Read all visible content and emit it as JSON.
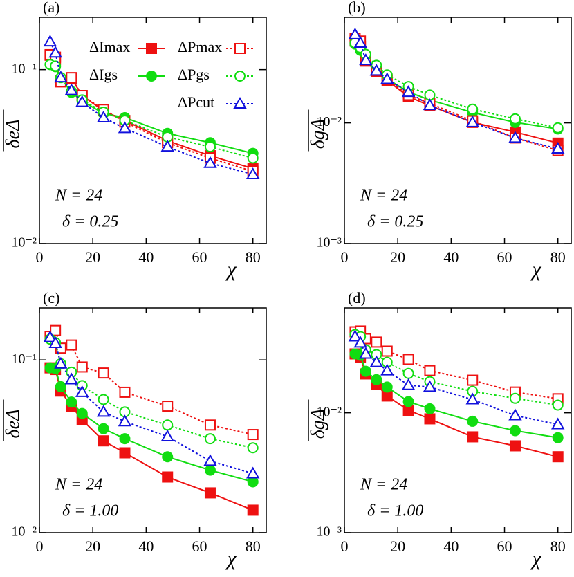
{
  "chart_data": [
    {
      "type": "line",
      "label": "(a)",
      "ylabel": "δeΔ",
      "xlabel": "χ",
      "annotations": [
        "N = 24",
        "δ = 0.25"
      ],
      "legend": true,
      "log_y": true,
      "x": [
        4,
        6,
        8,
        12,
        16,
        24,
        32,
        48,
        64,
        80
      ],
      "xlim": [
        0,
        85
      ],
      "xticks": [
        0,
        20,
        40,
        60,
        80
      ],
      "ylim": [
        0.01,
        0.2
      ],
      "yticks": [
        {
          "value": 0.1,
          "label": "10⁻¹"
        },
        {
          "value": 0.01,
          "label": "10⁻²"
        }
      ],
      "series": [
        {
          "name": "ΔImax",
          "color": "#ee1111",
          "marker": "square",
          "filled": true,
          "dashed": false,
          "values": [
            0.121,
            0.118,
            0.086,
            0.089,
            0.071,
            0.058,
            0.051,
            0.039,
            0.032,
            0.027
          ]
        },
        {
          "name": "ΔIgs",
          "color": "#11dd11",
          "marker": "circle",
          "filled": true,
          "dashed": false,
          "values": [
            0.107,
            0.104,
            0.089,
            0.074,
            0.066,
            0.056,
            0.053,
            0.043,
            0.038,
            0.033
          ]
        },
        {
          "name": "ΔPmax",
          "color": "#ee1111",
          "marker": "square",
          "filled": false,
          "dashed": true,
          "values": [
            0.122,
            0.114,
            0.085,
            0.09,
            0.071,
            0.059,
            0.05,
            0.038,
            0.031,
            0.026
          ]
        },
        {
          "name": "ΔPgs",
          "color": "#11dd11",
          "marker": "circle",
          "filled": false,
          "dashed": true,
          "values": [
            0.107,
            0.105,
            0.09,
            0.075,
            0.067,
            0.057,
            0.051,
            0.041,
            0.036,
            0.031
          ]
        },
        {
          "name": "ΔPcut",
          "color": "#1111dd",
          "marker": "triangle",
          "filled": false,
          "dashed": true,
          "values": [
            0.145,
            0.125,
            0.09,
            0.076,
            0.065,
            0.053,
            0.046,
            0.036,
            0.029,
            0.025
          ]
        }
      ]
    },
    {
      "type": "line",
      "label": "(b)",
      "ylabel": "δgΔ",
      "xlabel": "χ",
      "annotations": [
        "N = 24",
        "δ = 0.25"
      ],
      "legend": false,
      "log_y": true,
      "x": [
        4,
        6,
        8,
        12,
        16,
        24,
        32,
        48,
        64,
        80
      ],
      "xlim": [
        0,
        85
      ],
      "xticks": [
        0,
        20,
        40,
        60,
        80
      ],
      "ylim": [
        0.001,
        0.075
      ],
      "yticks": [
        {
          "value": 0.01,
          "label": "10⁻²"
        },
        {
          "value": 0.001,
          "label": "10⁻³"
        }
      ],
      "series": [
        {
          "name": "ΔImax",
          "color": "#ee1111",
          "marker": "square",
          "filled": true,
          "dashed": false,
          "values": [
            0.0477,
            0.043,
            0.0325,
            0.0265,
            0.0225,
            0.0165,
            0.0139,
            0.0101,
            0.0084,
            0.0068
          ]
        },
        {
          "name": "ΔIgs",
          "color": "#11dd11",
          "marker": "circle",
          "filled": true,
          "dashed": false,
          "values": [
            0.045,
            0.04,
            0.034,
            0.0278,
            0.0232,
            0.018,
            0.0155,
            0.0122,
            0.0101,
            0.0089
          ]
        },
        {
          "name": "ΔPmax",
          "color": "#ee1111",
          "marker": "square",
          "filled": false,
          "dashed": true,
          "values": [
            0.0502,
            0.0477,
            0.0333,
            0.0273,
            0.023,
            0.017,
            0.0145,
            0.0104,
            0.0075,
            0.0059
          ]
        },
        {
          "name": "ΔPgs",
          "color": "#11dd11",
          "marker": "circle",
          "filled": false,
          "dashed": true,
          "values": [
            0.046,
            0.042,
            0.037,
            0.03,
            0.025,
            0.02,
            0.017,
            0.013,
            0.0108,
            0.0091
          ]
        },
        {
          "name": "ΔPcut",
          "color": "#1111dd",
          "marker": "triangle",
          "filled": false,
          "dashed": true,
          "values": [
            0.054,
            0.046,
            0.033,
            0.027,
            0.023,
            0.018,
            0.014,
            0.0101,
            0.0075,
            0.0061
          ]
        }
      ]
    },
    {
      "type": "line",
      "label": "(c)",
      "ylabel": "δeΔ",
      "xlabel": "χ",
      "annotations": [
        "N = 24",
        "δ = 1.00"
      ],
      "legend": false,
      "log_y": true,
      "x": [
        4,
        6,
        8,
        12,
        16,
        24,
        32,
        48,
        64,
        80
      ],
      "xlim": [
        0,
        85
      ],
      "xticks": [
        0,
        20,
        40,
        60,
        80
      ],
      "ylim": [
        0.01,
        0.2
      ],
      "yticks": [
        {
          "value": 0.1,
          "label": "10⁻¹"
        },
        {
          "value": 0.01,
          "label": "10⁻²"
        }
      ],
      "series": [
        {
          "name": "ΔImax",
          "color": "#ee1111",
          "marker": "square",
          "filled": true,
          "dashed": false,
          "values": [
            0.09,
            0.088,
            0.066,
            0.054,
            0.045,
            0.034,
            0.029,
            0.021,
            0.017,
            0.0135
          ]
        },
        {
          "name": "ΔIgs",
          "color": "#11dd11",
          "marker": "circle",
          "filled": true,
          "dashed": false,
          "values": [
            0.09,
            0.089,
            0.07,
            0.057,
            0.049,
            0.04,
            0.035,
            0.0275,
            0.023,
            0.0197
          ]
        },
        {
          "name": "ΔPmax",
          "color": "#ee1111",
          "marker": "square",
          "filled": false,
          "dashed": true,
          "values": [
            0.137,
            0.148,
            0.117,
            0.122,
            0.091,
            0.084,
            0.065,
            0.054,
            0.042,
            0.037
          ]
        },
        {
          "name": "ΔPgs",
          "color": "#11dd11",
          "marker": "circle",
          "filled": false,
          "dashed": true,
          "values": [
            0.132,
            0.126,
            0.095,
            0.085,
            0.071,
            0.059,
            0.05,
            0.042,
            0.035,
            0.031
          ]
        },
        {
          "name": "ΔPcut",
          "color": "#1111dd",
          "marker": "triangle",
          "filled": false,
          "dashed": true,
          "values": [
            0.135,
            0.125,
            0.095,
            0.077,
            0.065,
            0.05,
            0.044,
            0.036,
            0.026,
            0.022
          ]
        }
      ]
    },
    {
      "type": "line",
      "label": "(d)",
      "ylabel": "δgΔ",
      "xlabel": "χ",
      "annotations": [
        "N = 24",
        "δ = 1.00"
      ],
      "legend": false,
      "log_y": true,
      "x": [
        4,
        6,
        8,
        12,
        16,
        24,
        32,
        48,
        64,
        80
      ],
      "xlim": [
        0,
        85
      ],
      "xticks": [
        0,
        20,
        40,
        60,
        80
      ],
      "ylim": [
        0.001,
        0.075
      ],
      "yticks": [
        {
          "value": 0.01,
          "label": "10⁻²"
        },
        {
          "value": 0.001,
          "label": "10⁻³"
        }
      ],
      "series": [
        {
          "name": "ΔImax",
          "color": "#ee1111",
          "marker": "square",
          "filled": true,
          "dashed": false,
          "values": [
            0.031,
            0.029,
            0.0211,
            0.0173,
            0.0138,
            0.0105,
            0.0089,
            0.0063,
            0.0053,
            0.0043
          ]
        },
        {
          "name": "ΔIgs",
          "color": "#11dd11",
          "marker": "circle",
          "filled": true,
          "dashed": false,
          "values": [
            0.031,
            0.0302,
            0.0222,
            0.0189,
            0.0164,
            0.0124,
            0.0108,
            0.0085,
            0.0071,
            0.0062
          ]
        },
        {
          "name": "ΔPmax",
          "color": "#ee1111",
          "marker": "square",
          "filled": false,
          "dashed": true,
          "values": [
            0.0474,
            0.0481,
            0.0415,
            0.0389,
            0.0327,
            0.0279,
            0.0225,
            0.0187,
            0.0149,
            0.0131
          ]
        },
        {
          "name": "ΔPgs",
          "color": "#11dd11",
          "marker": "circle",
          "filled": false,
          "dashed": true,
          "values": [
            0.045,
            0.0432,
            0.0336,
            0.0306,
            0.0264,
            0.0213,
            0.0182,
            0.0151,
            0.0132,
            0.0116
          ]
        },
        {
          "name": "ΔPcut",
          "color": "#1111dd",
          "marker": "triangle",
          "filled": false,
          "dashed": true,
          "values": [
            0.0432,
            0.0384,
            0.031,
            0.0264,
            0.0225,
            0.017,
            0.0164,
            0.0129,
            0.0095,
            0.008
          ]
        }
      ]
    }
  ]
}
